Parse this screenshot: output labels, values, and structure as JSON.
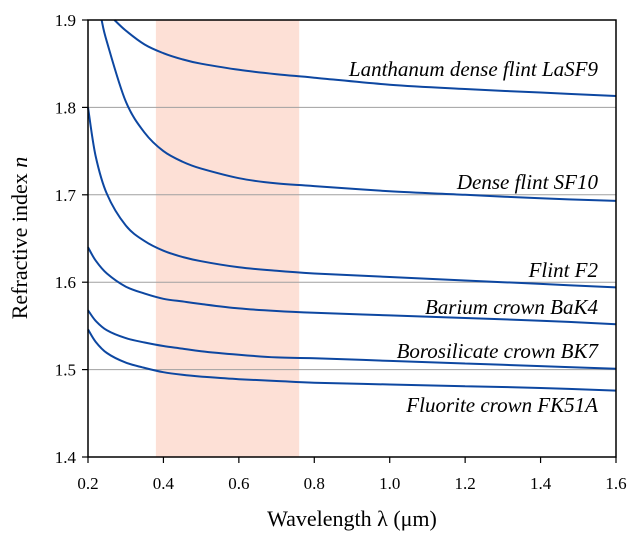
{
  "chart_data": {
    "type": "line",
    "xlabel_main": "Wavelength λ (μm)",
    "ylabel_main": "Refractive index ",
    "ylabel_symbol": "n",
    "xlim": [
      0.2,
      1.6
    ],
    "ylim": [
      1.4,
      1.9
    ],
    "x_ticks": [
      "0.2",
      "0.4",
      "0.6",
      "0.8",
      "1.0",
      "1.2",
      "1.4",
      "1.6"
    ],
    "y_ticks": [
      "1.4",
      "1.5",
      "1.6",
      "1.7",
      "1.8",
      "1.9"
    ],
    "horizontal_grid": [
      1.5,
      1.6,
      1.7,
      1.8
    ],
    "visible_band": {
      "from": 0.38,
      "to": 0.76,
      "color": "#fde0d6"
    },
    "line_color": "#0d47a1",
    "series": [
      {
        "name": "Lanthanum dense flint LaSF9",
        "x": [
          0.27,
          0.3,
          0.35,
          0.4,
          0.45,
          0.5,
          0.6,
          0.7,
          0.8,
          1.0,
          1.2,
          1.4,
          1.6
        ],
        "y": [
          1.9,
          1.888,
          1.872,
          1.862,
          1.855,
          1.85,
          1.843,
          1.838,
          1.834,
          1.826,
          1.821,
          1.817,
          1.813
        ]
      },
      {
        "name": "Dense flint SF10",
        "x": [
          0.236,
          0.25,
          0.3,
          0.35,
          0.4,
          0.45,
          0.5,
          0.6,
          0.7,
          0.8,
          1.0,
          1.2,
          1.4,
          1.6
        ],
        "y": [
          1.9,
          1.875,
          1.807,
          1.771,
          1.75,
          1.738,
          1.73,
          1.719,
          1.713,
          1.71,
          1.704,
          1.7,
          1.696,
          1.693
        ]
      },
      {
        "name": "Flint F2",
        "x": [
          0.2,
          0.22,
          0.25,
          0.3,
          0.35,
          0.4,
          0.45,
          0.5,
          0.6,
          0.7,
          0.8,
          1.0,
          1.2,
          1.4,
          1.6
        ],
        "y": [
          1.8,
          1.745,
          1.701,
          1.665,
          1.647,
          1.636,
          1.629,
          1.624,
          1.617,
          1.613,
          1.61,
          1.606,
          1.602,
          1.598,
          1.594
        ]
      },
      {
        "name": "Barium crown BaK4",
        "x": [
          0.2,
          0.22,
          0.25,
          0.3,
          0.35,
          0.4,
          0.45,
          0.5,
          0.6,
          0.7,
          0.8,
          1.0,
          1.2,
          1.4,
          1.6
        ],
        "y": [
          1.64,
          1.625,
          1.61,
          1.595,
          1.587,
          1.581,
          1.578,
          1.575,
          1.57,
          1.567,
          1.565,
          1.562,
          1.559,
          1.556,
          1.552
        ]
      },
      {
        "name": "Borosilicate crown BK7",
        "x": [
          0.2,
          0.22,
          0.25,
          0.3,
          0.35,
          0.4,
          0.45,
          0.5,
          0.6,
          0.7,
          0.8,
          1.0,
          1.2,
          1.4,
          1.6
        ],
        "y": [
          1.568,
          1.556,
          1.545,
          1.536,
          1.531,
          1.527,
          1.524,
          1.521,
          1.517,
          1.514,
          1.513,
          1.51,
          1.507,
          1.504,
          1.501
        ]
      },
      {
        "name": "Fluorite crown FK51A",
        "x": [
          0.2,
          0.22,
          0.25,
          0.3,
          0.35,
          0.4,
          0.45,
          0.5,
          0.6,
          0.7,
          0.8,
          1.0,
          1.2,
          1.4,
          1.6
        ],
        "y": [
          1.546,
          1.532,
          1.519,
          1.508,
          1.502,
          1.497,
          1.494,
          1.492,
          1.489,
          1.487,
          1.485,
          1.483,
          1.481,
          1.479,
          1.476
        ]
      }
    ]
  }
}
